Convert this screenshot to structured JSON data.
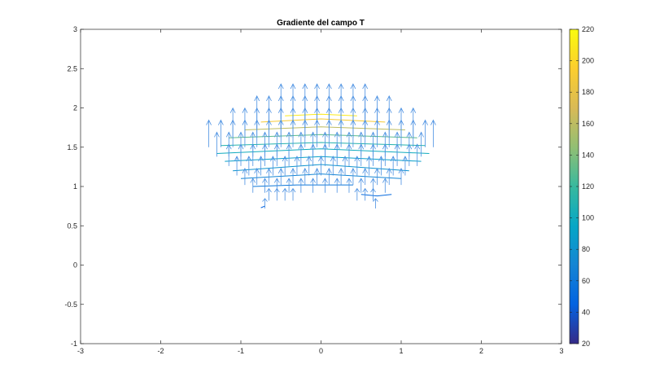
{
  "chart_data": [
    {
      "type": "quiver",
      "title": "Gradiente del campo T",
      "xlabel": "",
      "ylabel": "",
      "xlim": [
        -3,
        3
      ],
      "ylim": [
        -1,
        3
      ],
      "grid": false,
      "box": true,
      "xticks": [
        -3,
        -2,
        -1,
        0,
        1,
        2,
        3
      ],
      "xtick_labels": [
        "-3",
        "-2",
        "-1",
        "0",
        "1",
        "2",
        "3"
      ],
      "yticks": [
        -1,
        -0.5,
        0,
        0.5,
        1,
        1.5,
        2,
        2.5,
        3
      ],
      "ytick_labels": [
        "-1",
        "-0.5",
        "0",
        "0.5",
        "1",
        "1.5",
        "2",
        "2.5",
        "3"
      ],
      "arrow_color": "#4a90e2",
      "colorbar": {
        "position": "right",
        "range": [
          20,
          220
        ],
        "ticks": [
          20,
          40,
          60,
          80,
          100,
          120,
          140,
          160,
          180,
          200,
          220
        ],
        "tick_labels": [
          "20",
          "40",
          "60",
          "80",
          "100",
          "120",
          "140",
          "160",
          "180",
          "200",
          "220"
        ],
        "colormap": "parula",
        "colormap_stops": [
          "#352a87",
          "#0363e1",
          "#1485d4",
          "#06a7c6",
          "#38b99e",
          "#92bf73",
          "#d9ba56",
          "#fcce2e",
          "#f9fb0e"
        ]
      },
      "contours": [
        {
          "value": 210,
          "points": [
            [
              -0.45,
              1.9
            ],
            [
              0.0,
              1.92
            ],
            [
              0.45,
              1.9
            ]
          ]
        },
        {
          "value": 190,
          "points": [
            [
              -0.75,
              1.82
            ],
            [
              0.0,
              1.86
            ],
            [
              0.8,
              1.82
            ]
          ]
        },
        {
          "value": 160,
          "points": [
            [
              -0.95,
              1.72
            ],
            [
              0.0,
              1.76
            ],
            [
              1.05,
              1.72
            ]
          ]
        },
        {
          "value": 130,
          "points": [
            [
              -1.15,
              1.62
            ],
            [
              0.0,
              1.66
            ],
            [
              1.2,
              1.62
            ]
          ]
        },
        {
          "value": 110,
          "points": [
            [
              -1.25,
              1.52
            ],
            [
              0.0,
              1.56
            ],
            [
              1.3,
              1.52
            ]
          ]
        },
        {
          "value": 100,
          "points": [
            [
              -1.3,
              1.42
            ],
            [
              0.0,
              1.48
            ],
            [
              1.35,
              1.42
            ]
          ]
        },
        {
          "value": 90,
          "points": [
            [
              -1.2,
              1.32
            ],
            [
              0.0,
              1.38
            ],
            [
              1.25,
              1.32
            ]
          ]
        },
        {
          "value": 80,
          "points": [
            [
              -1.1,
              1.2
            ],
            [
              0.0,
              1.28
            ],
            [
              1.1,
              1.2
            ]
          ]
        },
        {
          "value": 70,
          "points": [
            [
              -1.0,
              1.1
            ],
            [
              0.0,
              1.16
            ],
            [
              1.0,
              1.1
            ]
          ]
        },
        {
          "value": 60,
          "points": [
            [
              -0.85,
              1.0
            ],
            [
              -0.3,
              1.02
            ],
            [
              0.4,
              1.02
            ]
          ]
        },
        {
          "value": 50,
          "points": [
            [
              0.5,
              0.9
            ],
            [
              0.7,
              0.88
            ],
            [
              0.88,
              0.9
            ]
          ]
        },
        {
          "value": 45,
          "points": [
            [
              -0.75,
              0.73
            ],
            [
              -0.7,
              0.75
            ]
          ]
        }
      ]
    }
  ]
}
